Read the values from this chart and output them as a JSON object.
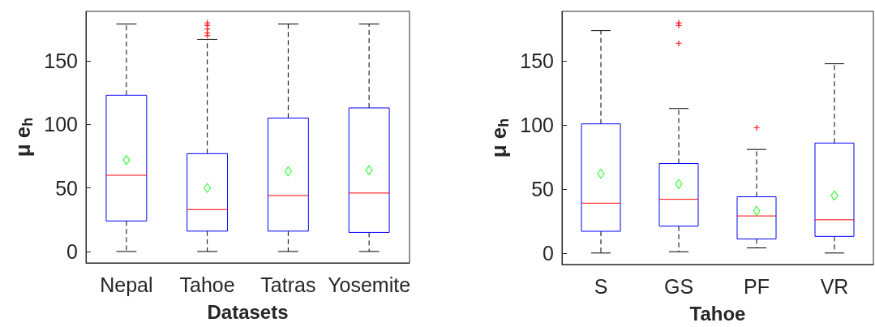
{
  "chart_data": [
    {
      "type": "box",
      "categories": [
        "Nepal",
        "Tahoe",
        "Tatras",
        "Yosemite"
      ],
      "xlabel": "Datasets",
      "ylabel": "μ e$_{h}$",
      "color": "#0000ff",
      "ylim": [
        -9,
        189
      ],
      "yticks": [
        0,
        50,
        100,
        150
      ],
      "boxes": [
        {
          "low": 0,
          "q1": 24,
          "median": 60,
          "q3": 123,
          "high": 179,
          "mean": 72
        },
        {
          "low": 0,
          "q1": 16,
          "median": 33,
          "q3": 77,
          "high": 167,
          "mean": 50,
          "outliers": [
            170,
            172,
            175,
            178,
            180
          ]
        },
        {
          "low": 0,
          "q1": 16,
          "median": 44,
          "q3": 105,
          "high": 179,
          "mean": 63
        },
        {
          "low": 0,
          "q1": 15,
          "median": 46,
          "q3": 113,
          "high": 179,
          "mean": 64
        }
      ]
    },
    {
      "type": "box",
      "categories": [
        "S",
        "GS",
        "PF",
        "VR"
      ],
      "xlabel": "Tahoe",
      "ylabel": "μ e$_{h}$",
      "color": "#0000ff",
      "ylim": [
        -9,
        189
      ],
      "yticks": [
        0,
        50,
        100,
        150
      ],
      "boxes": [
        {
          "low": 0,
          "q1": 17,
          "median": 39,
          "q3": 101,
          "high": 174,
          "mean": 62
        },
        {
          "low": 1,
          "q1": 21,
          "median": 42,
          "q3": 70,
          "high": 113,
          "mean": 54,
          "outliers": [
            164,
            178,
            180
          ]
        },
        {
          "low": 4,
          "q1": 11,
          "median": 29,
          "q3": 44,
          "high": 81,
          "mean": 33,
          "outliers": [
            98
          ]
        },
        {
          "low": 0,
          "q1": 13,
          "median": 26,
          "q3": 86,
          "high": 148,
          "mean": 45
        }
      ]
    }
  ]
}
